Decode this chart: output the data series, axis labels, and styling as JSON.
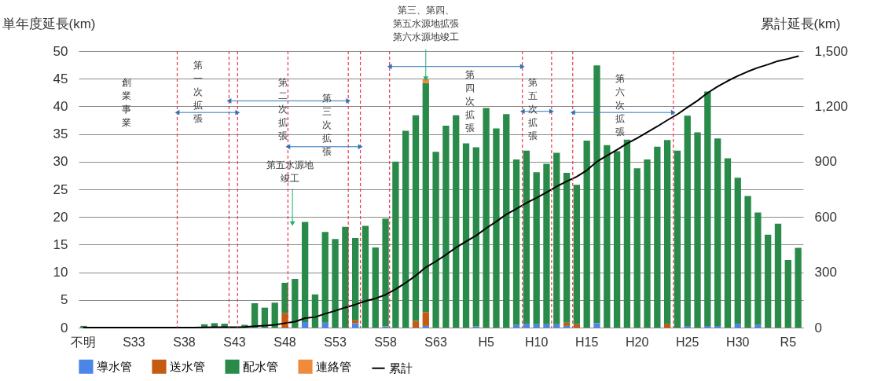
{
  "chart_data": {
    "type": "bar",
    "stacked": true,
    "xlabel": null,
    "ylabel": "単年度延長(km)",
    "y2label": "累計延長(km)",
    "categories": [
      "不明",
      null,
      null,
      null,
      null,
      "S33",
      null,
      null,
      null,
      null,
      "S38",
      null,
      null,
      null,
      null,
      "S43",
      null,
      null,
      null,
      null,
      "S48",
      null,
      null,
      null,
      null,
      "S53",
      null,
      null,
      null,
      null,
      "S58",
      null,
      null,
      null,
      null,
      "S63",
      null,
      null,
      null,
      null,
      "H5",
      null,
      null,
      null,
      null,
      "H10",
      null,
      null,
      null,
      null,
      "H15",
      null,
      null,
      null,
      null,
      "H20",
      null,
      null,
      null,
      null,
      "H25",
      null,
      null,
      null,
      null,
      "H30",
      null,
      null,
      null,
      null,
      "R5",
      null
    ],
    "series": [
      {
        "name": "導水管",
        "color": "#4a86e8",
        "values": [
          null,
          null,
          null,
          null,
          null,
          null,
          null,
          null,
          null,
          null,
          null,
          null,
          null,
          null,
          null,
          null,
          null,
          null,
          null,
          null,
          null,
          null,
          1.0,
          null,
          0.9,
          null,
          null,
          0.8,
          null,
          null,
          0.2,
          null,
          null,
          null,
          0.3,
          null,
          null,
          null,
          null,
          0.2,
          null,
          null,
          null,
          0.5,
          0.7,
          0.6,
          0.6,
          0.6,
          0.3,
          null,
          null,
          0.8,
          null,
          null,
          null,
          null,
          null,
          null,
          null,
          null,
          0.3,
          null,
          0.3,
          0.3,
          null,
          0.7,
          null,
          0.5,
          null,
          null,
          null,
          null
        ]
      },
      {
        "name": "送水管",
        "color": "#c55a11",
        "values": [
          null,
          null,
          null,
          null,
          null,
          null,
          null,
          null,
          null,
          null,
          null,
          null,
          null,
          null,
          null,
          null,
          null,
          null,
          null,
          null,
          2.6,
          null,
          null,
          null,
          null,
          null,
          null,
          0.6,
          null,
          null,
          null,
          null,
          null,
          1.2,
          2.5,
          null,
          null,
          null,
          null,
          null,
          null,
          null,
          null,
          null,
          null,
          null,
          null,
          null,
          0.6,
          0.6,
          null,
          null,
          null,
          null,
          null,
          null,
          null,
          null,
          0.7,
          null,
          null,
          null,
          null,
          null,
          null,
          null,
          null,
          null,
          null,
          null,
          null,
          null
        ]
      },
      {
        "name": "配水管",
        "color": "#2a8a4a",
        "values": [
          0.3,
          null,
          null,
          null,
          null,
          null,
          null,
          null,
          null,
          null,
          null,
          null,
          0.6,
          0.8,
          0.7,
          null,
          0.5,
          4.4,
          3.6,
          4.5,
          5.5,
          8.8,
          18.1,
          6.0,
          16.4,
          16.0,
          18.2,
          14.8,
          18.4,
          14.5,
          19.5,
          30.0,
          35.6,
          37.2,
          41.4,
          31.8,
          36.5,
          38.4,
          33.3,
          32.4,
          39.7,
          36.0,
          38.6,
          29.9,
          31.3,
          27.5,
          29.0,
          31.0,
          27.1,
          25.2,
          33.8,
          46.6,
          33.0,
          31.9,
          34.0,
          28.8,
          30.4,
          32.7,
          33.2,
          32.0,
          38.0,
          35.3,
          42.4,
          33.9,
          30.6,
          26.4,
          23.8,
          20.3,
          16.8,
          18.8,
          12.2,
          14.4
        ]
      },
      {
        "name": "連絡管",
        "color": "#f08a3c",
        "values": [
          null,
          null,
          null,
          null,
          null,
          null,
          null,
          null,
          null,
          null,
          null,
          null,
          null,
          null,
          null,
          null,
          null,
          null,
          null,
          null,
          null,
          null,
          null,
          null,
          null,
          null,
          null,
          null,
          null,
          null,
          null,
          null,
          null,
          null,
          0.8,
          null,
          null,
          null,
          null,
          null,
          null,
          null,
          null,
          null,
          null,
          null,
          null,
          null,
          null,
          null,
          null,
          null,
          null,
          null,
          null,
          null,
          null,
          null,
          null,
          null,
          null,
          null,
          null,
          null,
          null,
          null,
          null,
          null,
          null,
          null,
          null,
          null
        ]
      },
      {
        "name": "累計",
        "type": "line",
        "axis": "y2",
        "color": "#000000",
        "values": [
          0,
          0,
          0,
          0,
          0,
          0,
          0,
          0,
          0,
          0,
          0,
          0,
          1,
          2,
          2,
          2,
          3,
          7,
          11,
          15,
          24,
          32,
          51,
          57,
          75,
          91,
          109,
          125,
          144,
          158,
          178,
          208,
          243,
          282,
          327,
          359,
          395,
          434,
          467,
          499,
          539,
          575,
          614,
          644,
          676,
          704,
          734,
          765,
          793,
          819,
          853,
          900,
          933,
          965,
          999,
          1028,
          1059,
          1091,
          1125,
          1157,
          1195,
          1231,
          1273,
          1308,
          1338,
          1365,
          1389,
          1410,
          1427,
          1446,
          1458,
          1472
        ]
      }
    ],
    "ylim": [
      0,
      50
    ],
    "yticks": [
      0,
      5,
      10,
      15,
      20,
      25,
      30,
      35,
      40,
      45,
      50
    ],
    "y2lim": [
      0,
      1500
    ],
    "y2ticks": [
      0,
      300,
      600,
      900,
      {
        "value": 1200,
        "label": "1,200"
      },
      {
        "value": 1500,
        "label": "1,500"
      }
    ],
    "annotations": [
      "創業事業",
      "第一次拡張",
      "第二次拡張",
      "第三次拡張",
      {
        "text": "第三、第四、第五水源地拡張第六水源地竣工",
        "y": 45.0
      },
      "第四次拡張",
      "第五次拡張",
      "第六次拡張",
      "第五水源地竣工"
    ],
    "grid": "y",
    "legend": "bottom"
  }
}
